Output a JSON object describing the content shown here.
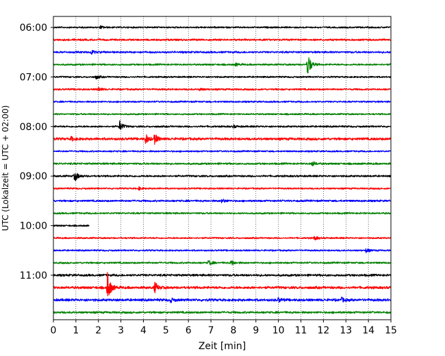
{
  "chart_data": {
    "type": "line",
    "xlabel": "Zeit  [min]",
    "ylabel": "UTC (Lokalzeit = UTC + 02:00)",
    "xlim": [
      0,
      15
    ],
    "x_ticks": [
      0,
      1,
      2,
      3,
      4,
      5,
      6,
      7,
      8,
      9,
      10,
      11,
      12,
      13,
      14,
      15
    ],
    "y_tick_labels": [
      "06:00",
      "07:00",
      "08:00",
      "09:00",
      "10:00",
      "11:00"
    ],
    "grid": "vertical dotted at each minute",
    "trace_duration_min": 15,
    "trace_colors": [
      "#000000",
      "#ff0000",
      "#0000ff",
      "#008000"
    ],
    "traces": [
      {
        "start": "06:00",
        "amp": 1.0,
        "events": [
          {
            "t": 2.1,
            "a": 2
          }
        ]
      },
      {
        "start": "06:15",
        "amp": 1.2,
        "events": []
      },
      {
        "start": "06:30",
        "amp": 1.2,
        "events": [
          {
            "t": 1.7,
            "a": 3
          }
        ]
      },
      {
        "start": "06:45",
        "amp": 1.1,
        "events": [
          {
            "t": 8.1,
            "a": 2
          },
          {
            "t": 11.3,
            "a": 18
          }
        ]
      },
      {
        "start": "07:00",
        "amp": 1.0,
        "events": [
          {
            "t": 1.9,
            "a": 3
          }
        ]
      },
      {
        "start": "07:15",
        "amp": 1.1,
        "events": [
          {
            "t": 2.0,
            "a": 3
          },
          {
            "t": 6.5,
            "a": 2
          }
        ]
      },
      {
        "start": "07:30",
        "amp": 1.0,
        "events": []
      },
      {
        "start": "07:45",
        "amp": 1.0,
        "events": []
      },
      {
        "start": "08:00",
        "amp": 1.1,
        "events": [
          {
            "t": 2.95,
            "a": 8
          },
          {
            "t": 8.0,
            "a": 2
          }
        ]
      },
      {
        "start": "08:15",
        "amp": 1.6,
        "events": [
          {
            "t": 0.8,
            "a": 3
          },
          {
            "t": 4.1,
            "a": 7
          },
          {
            "t": 4.5,
            "a": 7
          }
        ]
      },
      {
        "start": "08:30",
        "amp": 1.0,
        "events": []
      },
      {
        "start": "08:45",
        "amp": 1.2,
        "events": [
          {
            "t": 11.5,
            "a": 4
          }
        ]
      },
      {
        "start": "09:00",
        "amp": 1.2,
        "events": [
          {
            "t": 0.95,
            "a": 8
          }
        ]
      },
      {
        "start": "09:15",
        "amp": 1.0,
        "events": [
          {
            "t": 3.8,
            "a": 2
          }
        ]
      },
      {
        "start": "09:30",
        "amp": 1.2,
        "events": [
          {
            "t": 7.5,
            "a": 3
          }
        ]
      },
      {
        "start": "09:45",
        "amp": 1.1,
        "events": []
      },
      {
        "start": "10:00",
        "amp": 1.0,
        "events": [],
        "partial": true
      },
      {
        "start": "10:15",
        "amp": 1.0,
        "events": [
          {
            "t": 11.6,
            "a": 3
          }
        ]
      },
      {
        "start": "10:30",
        "amp": 1.0,
        "events": [
          {
            "t": 13.9,
            "a": 3
          }
        ]
      },
      {
        "start": "10:45",
        "amp": 1.1,
        "events": [
          {
            "t": 6.9,
            "a": 4
          },
          {
            "t": 7.9,
            "a": 4
          }
        ]
      },
      {
        "start": "11:00",
        "amp": 1.4,
        "events": []
      },
      {
        "start": "11:15",
        "amp": 1.6,
        "events": [
          {
            "t": 2.4,
            "a": 22
          },
          {
            "t": 4.5,
            "a": 8
          }
        ]
      },
      {
        "start": "11:30",
        "amp": 1.6,
        "events": [
          {
            "t": 5.2,
            "a": 3
          },
          {
            "t": 10.0,
            "a": 3
          },
          {
            "t": 12.8,
            "a": 3
          }
        ]
      },
      {
        "start": "11:45",
        "amp": 1.3,
        "events": []
      }
    ]
  }
}
